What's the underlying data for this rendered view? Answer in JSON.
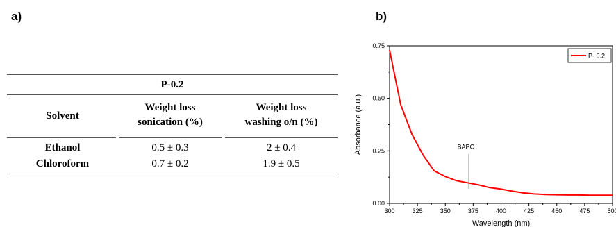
{
  "panel_labels": {
    "a": "a)",
    "b": "b)"
  },
  "table": {
    "title": "P-0.2",
    "headers": {
      "solvent": "Solvent",
      "sonication_line1": "Weight loss",
      "sonication_line2": "sonication (%)",
      "washing_line1": "Weight loss",
      "washing_line2": "washing o/n (%)"
    },
    "rows": [
      {
        "solvent": "Ethanol",
        "sonication": "0.5 ± 0.3",
        "washing": "2 ± 0.4"
      },
      {
        "solvent": "Chloroform",
        "sonication": "0.7 ± 0.2",
        "washing": "1.9   ± 0.5"
      }
    ]
  },
  "chart_data": {
    "type": "line",
    "title": "",
    "xlabel": "Wavelength (nm)",
    "ylabel": "Absorbance (a.u.)",
    "xlim": [
      300,
      500
    ],
    "ylim": [
      0,
      0.75
    ],
    "x_ticks": [
      300,
      325,
      350,
      375,
      400,
      425,
      450,
      475,
      500
    ],
    "x_tick_labels": [
      "300",
      "325",
      "350",
      "375",
      "400",
      "425",
      "450",
      "475",
      "500"
    ],
    "y_ticks": [
      0,
      0.25,
      0.5,
      0.75
    ],
    "y_tick_labels": [
      "0.00",
      "0.25",
      "0.50",
      "0.75"
    ],
    "grid": false,
    "legend_position": "top-right",
    "series": [
      {
        "name": "P- 0.2",
        "color": "#ff0000",
        "x": [
          300,
          305,
          310,
          320,
          330,
          340,
          350,
          360,
          370,
          380,
          390,
          400,
          410,
          420,
          430,
          440,
          450,
          460,
          470,
          480,
          490,
          500
        ],
        "y": [
          0.73,
          0.6,
          0.47,
          0.33,
          0.23,
          0.155,
          0.128,
          0.108,
          0.098,
          0.088,
          0.075,
          0.068,
          0.058,
          0.05,
          0.045,
          0.042,
          0.041,
          0.04,
          0.04,
          0.039,
          0.039,
          0.039
        ]
      }
    ],
    "annotations": [
      {
        "text": "BAPO",
        "x": 371
      }
    ]
  }
}
